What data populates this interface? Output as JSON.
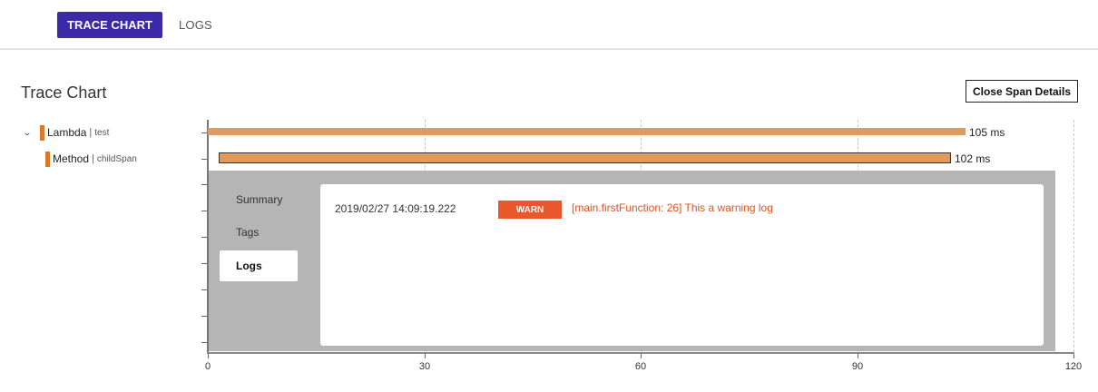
{
  "top_tabs": {
    "trace_chart": "TRACE CHART",
    "logs": "LOGS"
  },
  "page_title": "Trace Chart",
  "close_button": "Close Span Details",
  "spans": [
    {
      "service": "Lambda",
      "operation": "test",
      "duration_label": "105 ms",
      "start_ms": 0,
      "duration_ms": 105,
      "expanded": true
    },
    {
      "service": "Method",
      "operation": "childSpan",
      "duration_label": "102 ms",
      "start_ms": 1,
      "duration_ms": 102,
      "selected": true
    }
  ],
  "axis": {
    "ticks": [
      "0",
      "30",
      "60",
      "90",
      "120"
    ],
    "min": 0,
    "max": 120
  },
  "details": {
    "tabs": [
      "Summary",
      "Tags",
      "Logs"
    ],
    "active_tab": "Logs",
    "logs": [
      {
        "time": "2019/02/27 14:09:19.222",
        "level": "WARN",
        "message": "[main.firstFunction: 26] This a warning log"
      }
    ]
  },
  "colors": {
    "accent": "#3c2aa8",
    "span": "#e09a5d",
    "warn": "#e8582a"
  }
}
